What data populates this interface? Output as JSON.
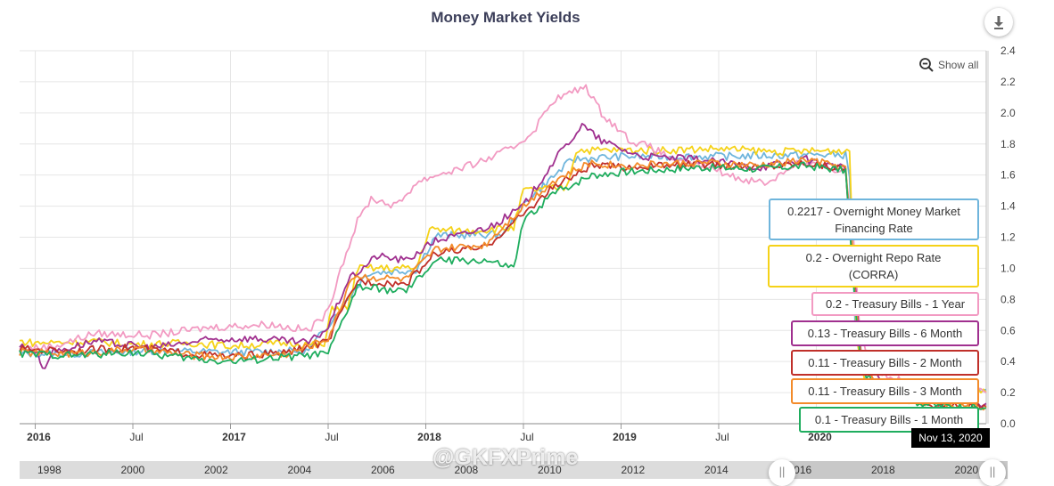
{
  "chart_data": {
    "type": "line",
    "title": "Money Market Yields",
    "ylim": [
      0.0,
      2.4
    ],
    "y_ticks": [
      "0.0",
      "0.2",
      "0.4",
      "0.6",
      "0.8",
      "1.0",
      "1.2",
      "1.4",
      "1.6",
      "1.8",
      "2.0",
      "2.2",
      "2.4"
    ],
    "x_ticks": [
      {
        "label": "2016",
        "bold": true,
        "t": 2016.0
      },
      {
        "label": "Jul",
        "bold": false,
        "t": 2016.5
      },
      {
        "label": "2017",
        "bold": true,
        "t": 2017.0
      },
      {
        "label": "Jul",
        "bold": false,
        "t": 2017.5
      },
      {
        "label": "2018",
        "bold": true,
        "t": 2018.0
      },
      {
        "label": "Jul",
        "bold": false,
        "t": 2018.5
      },
      {
        "label": "2019",
        "bold": true,
        "t": 2019.0
      },
      {
        "label": "Jul",
        "bold": false,
        "t": 2019.5
      },
      {
        "label": "2020",
        "bold": true,
        "t": 2020.0
      }
    ],
    "x_range": [
      2015.92,
      2020.87
    ],
    "grid": true,
    "series": [
      {
        "name": "Overnight Money Market Financing Rate",
        "color": "#6fb5dc",
        "tooltip": "0.2217 - Overnight Money Market Financing Rate",
        "points": [
          [
            2015.92,
            0.45
          ],
          [
            2016.2,
            0.45
          ],
          [
            2016.6,
            0.47
          ],
          [
            2017.0,
            0.46
          ],
          [
            2017.4,
            0.47
          ],
          [
            2017.55,
            0.72
          ],
          [
            2017.7,
            0.97
          ],
          [
            2017.95,
            0.99
          ],
          [
            2018.05,
            1.21
          ],
          [
            2018.4,
            1.22
          ],
          [
            2018.52,
            1.44
          ],
          [
            2018.75,
            1.7
          ],
          [
            2019.0,
            1.72
          ],
          [
            2019.5,
            1.72
          ],
          [
            2019.95,
            1.73
          ],
          [
            2020.15,
            1.73
          ],
          [
            2020.17,
            1.6
          ],
          [
            2020.2,
            0.6
          ],
          [
            2020.25,
            0.25
          ],
          [
            2020.5,
            0.23
          ],
          [
            2020.87,
            0.22
          ]
        ]
      },
      {
        "name": "Overnight Repo Rate (CORRA)",
        "color": "#f5d218",
        "tooltip": "0.2 - Overnight Repo Rate\n(CORRA)",
        "points": [
          [
            2015.92,
            0.53
          ],
          [
            2016.0,
            0.52
          ],
          [
            2016.3,
            0.53
          ],
          [
            2016.5,
            0.51
          ],
          [
            2016.8,
            0.52
          ],
          [
            2017.0,
            0.5
          ],
          [
            2017.3,
            0.52
          ],
          [
            2017.48,
            0.5
          ],
          [
            2017.52,
            0.75
          ],
          [
            2017.6,
            0.74
          ],
          [
            2017.65,
            1.0
          ],
          [
            2017.95,
            1.0
          ],
          [
            2018.02,
            1.25
          ],
          [
            2018.2,
            1.24
          ],
          [
            2018.45,
            1.26
          ],
          [
            2018.5,
            1.5
          ],
          [
            2018.72,
            1.52
          ],
          [
            2018.77,
            1.76
          ],
          [
            2019.2,
            1.76
          ],
          [
            2019.5,
            1.77
          ],
          [
            2019.8,
            1.75
          ],
          [
            2020.17,
            1.76
          ],
          [
            2020.19,
            1.0
          ],
          [
            2020.21,
            0.5
          ],
          [
            2020.25,
            0.27
          ],
          [
            2020.5,
            0.22
          ],
          [
            2020.87,
            0.2
          ]
        ]
      },
      {
        "name": "Treasury Bills - 1 Year",
        "color": "#f29ac2",
        "tooltip": "0.2 - Treasury Bills - 1 Year",
        "points": [
          [
            2015.92,
            0.48
          ],
          [
            2016.1,
            0.5
          ],
          [
            2016.3,
            0.58
          ],
          [
            2016.6,
            0.57
          ],
          [
            2016.9,
            0.62
          ],
          [
            2017.2,
            0.64
          ],
          [
            2017.4,
            0.6
          ],
          [
            2017.5,
            0.72
          ],
          [
            2017.55,
            0.95
          ],
          [
            2017.65,
            1.3
          ],
          [
            2017.72,
            1.45
          ],
          [
            2017.85,
            1.4
          ],
          [
            2017.95,
            1.55
          ],
          [
            2018.05,
            1.6
          ],
          [
            2018.2,
            1.65
          ],
          [
            2018.35,
            1.72
          ],
          [
            2018.45,
            1.78
          ],
          [
            2018.55,
            1.88
          ],
          [
            2018.65,
            2.08
          ],
          [
            2018.82,
            2.17
          ],
          [
            2018.9,
            2.0
          ],
          [
            2019.05,
            1.82
          ],
          [
            2019.15,
            1.78
          ],
          [
            2019.3,
            1.68
          ],
          [
            2019.45,
            1.65
          ],
          [
            2019.6,
            1.58
          ],
          [
            2019.75,
            1.55
          ],
          [
            2019.9,
            1.68
          ],
          [
            2020.05,
            1.65
          ],
          [
            2020.15,
            1.62
          ],
          [
            2020.19,
            1.2
          ],
          [
            2020.22,
            0.65
          ],
          [
            2020.28,
            0.35
          ],
          [
            2020.45,
            0.27
          ],
          [
            2020.7,
            0.22
          ],
          [
            2020.87,
            0.2
          ]
        ]
      },
      {
        "name": "Treasury Bills - 6 Month",
        "color": "#a0308f",
        "tooltip": "0.13 - Treasury Bills - 6 Month",
        "points": [
          [
            2015.92,
            0.5
          ],
          [
            2016.0,
            0.47
          ],
          [
            2016.05,
            0.35
          ],
          [
            2016.08,
            0.46
          ],
          [
            2016.3,
            0.53
          ],
          [
            2016.6,
            0.49
          ],
          [
            2016.9,
            0.54
          ],
          [
            2017.1,
            0.55
          ],
          [
            2017.4,
            0.52
          ],
          [
            2017.5,
            0.62
          ],
          [
            2017.6,
            0.92
          ],
          [
            2017.75,
            1.08
          ],
          [
            2017.9,
            1.05
          ],
          [
            2018.05,
            1.18
          ],
          [
            2018.2,
            1.22
          ],
          [
            2018.35,
            1.28
          ],
          [
            2018.5,
            1.4
          ],
          [
            2018.65,
            1.68
          ],
          [
            2018.8,
            1.92
          ],
          [
            2018.9,
            1.82
          ],
          [
            2019.1,
            1.72
          ],
          [
            2019.4,
            1.7
          ],
          [
            2019.7,
            1.65
          ],
          [
            2019.95,
            1.7
          ],
          [
            2020.15,
            1.64
          ],
          [
            2020.19,
            1.0
          ],
          [
            2020.23,
            0.45
          ],
          [
            2020.35,
            0.22
          ],
          [
            2020.6,
            0.15
          ],
          [
            2020.87,
            0.13
          ]
        ]
      },
      {
        "name": "Treasury Bills - 2 Month",
        "color": "#c0302a",
        "tooltip": "0.11 - Treasury Bills - 2 Month",
        "points": [
          [
            2015.92,
            0.48
          ],
          [
            2016.2,
            0.47
          ],
          [
            2016.5,
            0.49
          ],
          [
            2016.8,
            0.45
          ],
          [
            2017.0,
            0.43
          ],
          [
            2017.3,
            0.46
          ],
          [
            2017.5,
            0.53
          ],
          [
            2017.57,
            0.72
          ],
          [
            2017.65,
            0.92
          ],
          [
            2017.9,
            0.9
          ],
          [
            2018.05,
            1.1
          ],
          [
            2018.3,
            1.13
          ],
          [
            2018.5,
            1.35
          ],
          [
            2018.65,
            1.52
          ],
          [
            2018.85,
            1.66
          ],
          [
            2019.0,
            1.65
          ],
          [
            2019.4,
            1.67
          ],
          [
            2019.7,
            1.65
          ],
          [
            2019.95,
            1.68
          ],
          [
            2020.15,
            1.64
          ],
          [
            2020.19,
            0.95
          ],
          [
            2020.23,
            0.4
          ],
          [
            2020.35,
            0.2
          ],
          [
            2020.6,
            0.12
          ],
          [
            2020.87,
            0.11
          ]
        ]
      },
      {
        "name": "Treasury Bills - 3 Month",
        "color": "#f38b2a",
        "tooltip": "0.11 - Treasury Bills - 3 Month",
        "points": [
          [
            2015.92,
            0.46
          ],
          [
            2016.2,
            0.45
          ],
          [
            2016.5,
            0.48
          ],
          [
            2016.8,
            0.44
          ],
          [
            2017.0,
            0.43
          ],
          [
            2017.3,
            0.45
          ],
          [
            2017.5,
            0.55
          ],
          [
            2017.55,
            0.7
          ],
          [
            2017.62,
            0.95
          ],
          [
            2017.9,
            0.93
          ],
          [
            2018.05,
            1.12
          ],
          [
            2018.3,
            1.15
          ],
          [
            2018.5,
            1.4
          ],
          [
            2018.65,
            1.56
          ],
          [
            2018.85,
            1.68
          ],
          [
            2019.0,
            1.66
          ],
          [
            2019.4,
            1.68
          ],
          [
            2019.7,
            1.66
          ],
          [
            2019.95,
            1.7
          ],
          [
            2020.15,
            1.65
          ],
          [
            2020.19,
            0.95
          ],
          [
            2020.23,
            0.4
          ],
          [
            2020.35,
            0.2
          ],
          [
            2020.6,
            0.13
          ],
          [
            2020.87,
            0.11
          ]
        ]
      },
      {
        "name": "Treasury Bills - 1 Month",
        "color": "#1fad5e",
        "tooltip": "0.1 - Treasury Bills - 1 Month",
        "points": [
          [
            2015.92,
            0.45
          ],
          [
            2016.2,
            0.44
          ],
          [
            2016.5,
            0.46
          ],
          [
            2016.8,
            0.42
          ],
          [
            2017.0,
            0.4
          ],
          [
            2017.3,
            0.43
          ],
          [
            2017.5,
            0.45
          ],
          [
            2017.57,
            0.65
          ],
          [
            2017.65,
            0.88
          ],
          [
            2017.9,
            0.85
          ],
          [
            2018.05,
            1.05
          ],
          [
            2018.3,
            1.05
          ],
          [
            2018.45,
            1.0
          ],
          [
            2018.5,
            1.3
          ],
          [
            2018.65,
            1.48
          ],
          [
            2018.85,
            1.6
          ],
          [
            2019.0,
            1.62
          ],
          [
            2019.4,
            1.65
          ],
          [
            2019.7,
            1.64
          ],
          [
            2019.95,
            1.66
          ],
          [
            2020.15,
            1.63
          ],
          [
            2020.19,
            0.9
          ],
          [
            2020.23,
            0.35
          ],
          [
            2020.35,
            0.18
          ],
          [
            2020.6,
            0.12
          ],
          [
            2020.87,
            0.1
          ]
        ]
      }
    ]
  },
  "ui": {
    "show_all": "Show all",
    "cursor_date": "Nov 13, 2020",
    "watermark": "@GKFXPrime",
    "navigator_labels": [
      "1998",
      "2000",
      "2002",
      "2004",
      "2006",
      "2008",
      "2010",
      "2012",
      "2014",
      "2016",
      "2018",
      "2020"
    ],
    "handle_glyph": "||",
    "export_icon": "download-icon",
    "zoom_icon": "zoom-out-icon"
  }
}
